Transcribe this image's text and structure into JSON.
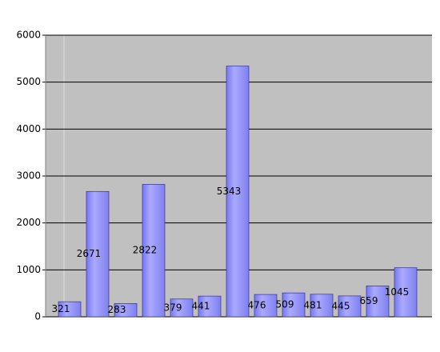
{
  "chart_data": {
    "type": "bar",
    "values": [
      321,
      2671,
      283,
      2822,
      379,
      441,
      5343,
      476,
      509,
      481,
      445,
      659,
      1045
    ],
    "color": "#9999ff",
    "ylim": [
      0,
      6000
    ],
    "yticks": [
      0,
      1000,
      2000,
      3000,
      4000,
      5000,
      6000
    ],
    "grid": true
  }
}
